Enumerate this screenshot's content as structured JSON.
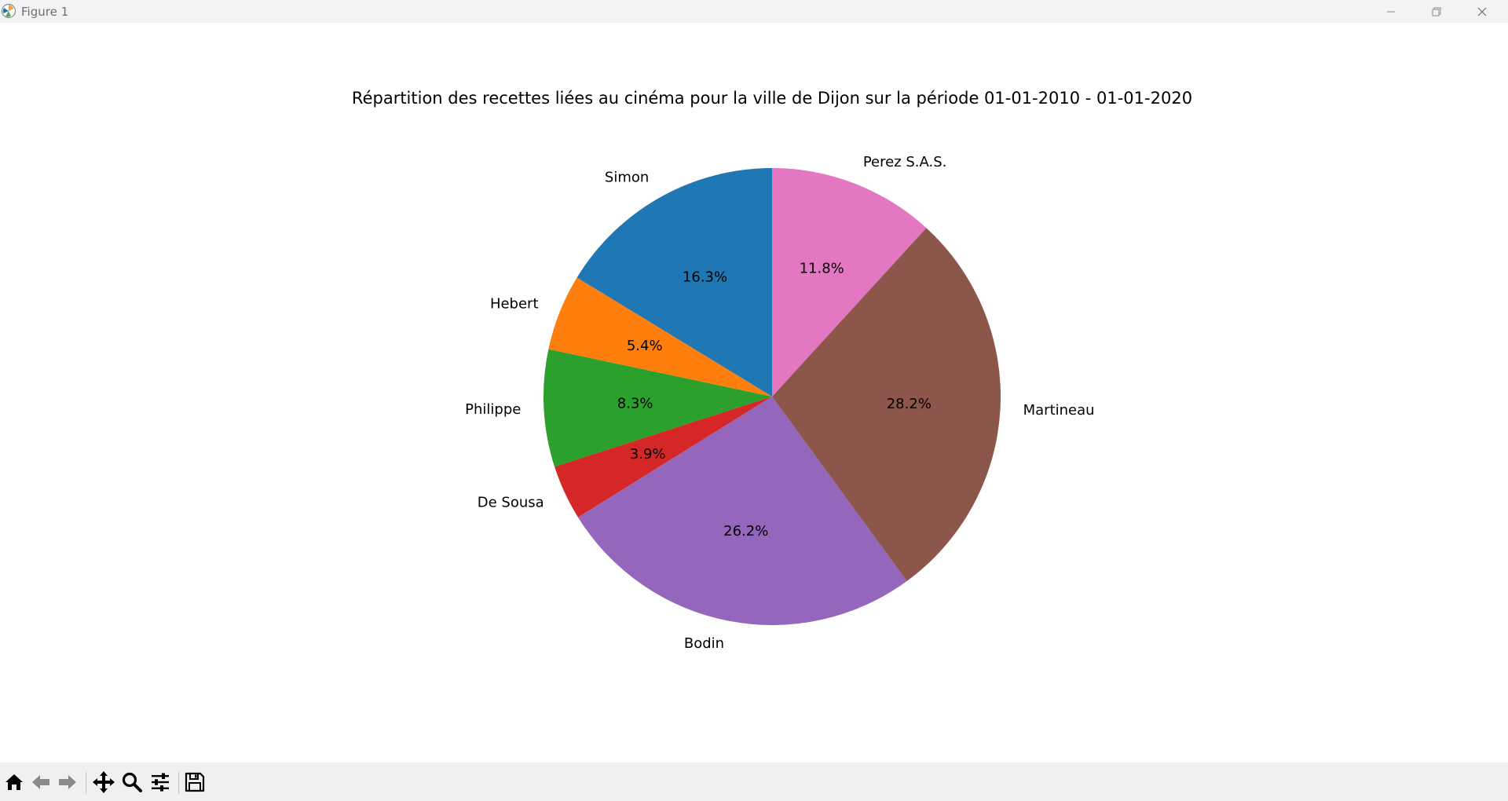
{
  "window": {
    "title": "Figure 1"
  },
  "toolbar": {
    "tools": [
      {
        "name": "home-button",
        "icon": "home-icon"
      },
      {
        "name": "back-button",
        "icon": "arrow-left-icon"
      },
      {
        "name": "forward-button",
        "icon": "arrow-right-icon"
      },
      {
        "name": "pan-button",
        "icon": "move-icon"
      },
      {
        "name": "zoom-button",
        "icon": "magnifier-icon"
      },
      {
        "name": "configure-subplots-button",
        "icon": "sliders-icon"
      },
      {
        "name": "save-button",
        "icon": "floppy-disk-icon"
      }
    ]
  },
  "chart_data": {
    "type": "pie",
    "title": "Répartition des recettes liées au cinéma pour la ville de Dijon sur la période 01-01-2010 - 01-01-2020",
    "start_angle_deg": 90,
    "direction": "counterclockwise",
    "legend": "none",
    "slices": [
      {
        "label": "Simon",
        "value": 16.3,
        "pct_label": "16.3%",
        "color": "#1f77b4"
      },
      {
        "label": "Hebert",
        "value": 5.4,
        "pct_label": "5.4%",
        "color": "#ff7f0e"
      },
      {
        "label": "Philippe",
        "value": 8.3,
        "pct_label": "8.3%",
        "color": "#2ca02c"
      },
      {
        "label": "De Sousa",
        "value": 3.9,
        "pct_label": "3.9%",
        "color": "#d62728"
      },
      {
        "label": "Bodin",
        "value": 26.2,
        "pct_label": "26.2%",
        "color": "#9467bd"
      },
      {
        "label": "Martineau",
        "value": 28.2,
        "pct_label": "28.2%",
        "color": "#8c564b"
      },
      {
        "label": "Perez S.A.S.",
        "value": 11.8,
        "pct_label": "11.8%",
        "color": "#e377c2"
      }
    ]
  }
}
